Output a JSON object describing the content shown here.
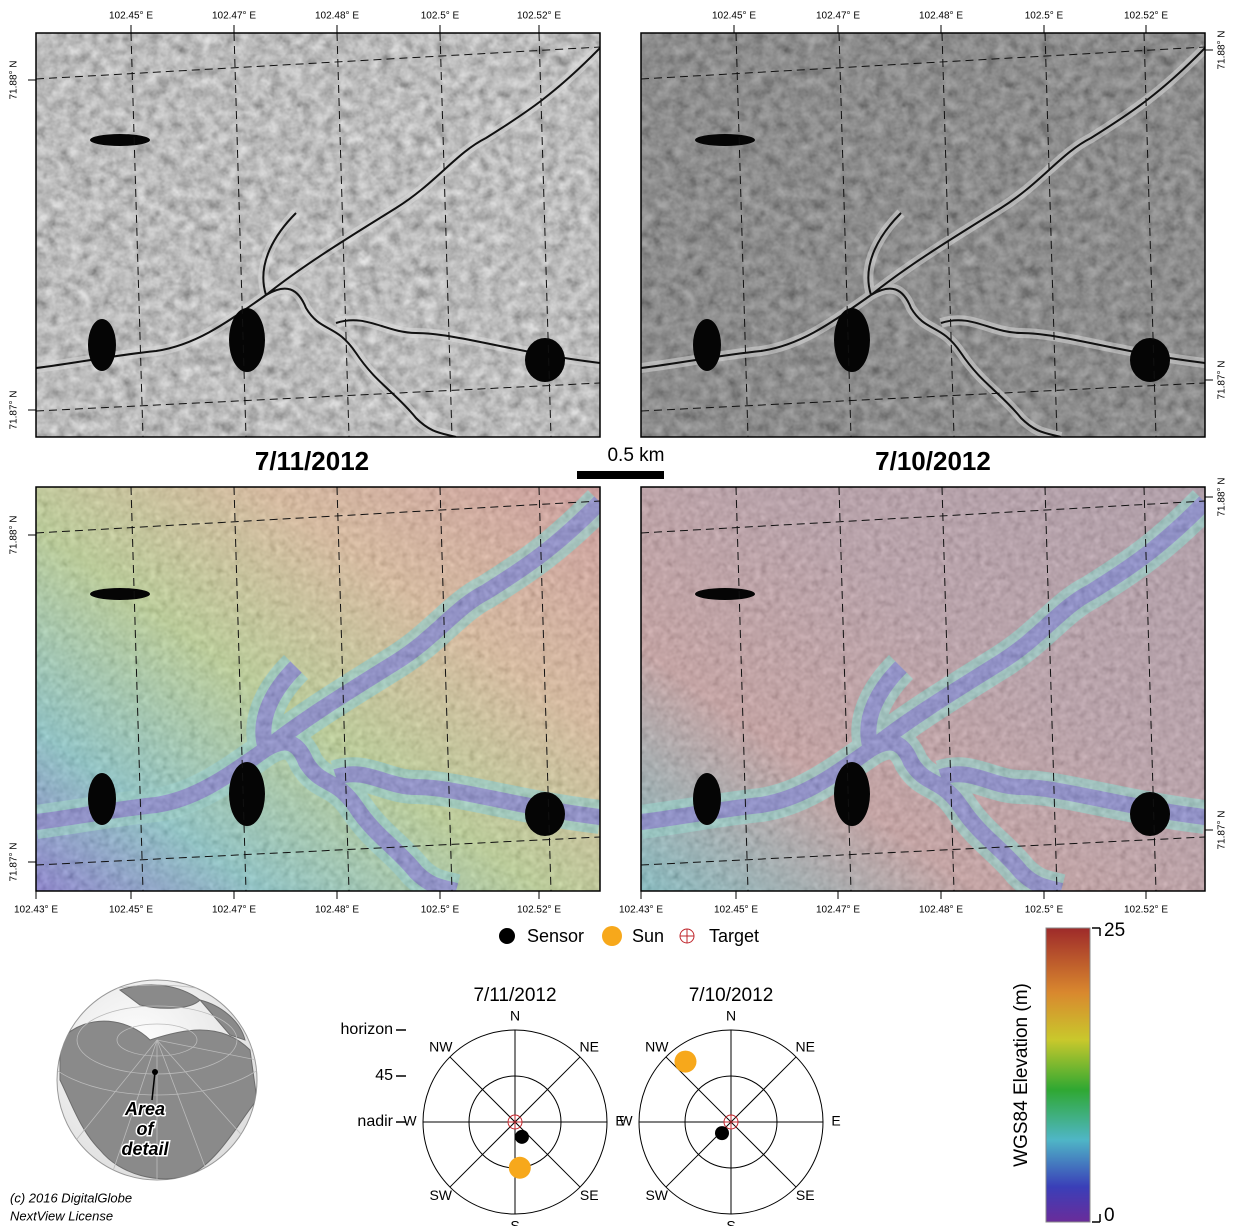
{
  "maps": {
    "titles": [
      "7/11/2012",
      "7/10/2012"
    ],
    "top_lon_labels": [
      "102.45° E",
      "102.47° E",
      "102.48° E",
      "102.5° E",
      "102.52° E"
    ],
    "bottom_lon_labels": [
      "102.43° E",
      "102.45° E",
      "102.47° E",
      "102.48° E",
      "102.5° E",
      "102.52° E"
    ],
    "lat_labels": [
      "71.88° N",
      "71.87° N"
    ],
    "scale_bar": "0.5 km"
  },
  "legend": {
    "sensor": "Sensor",
    "sun": "Sun",
    "target": "Target"
  },
  "polar_axis": {
    "rlim": [
      0,
      90
    ],
    "rticks": [
      {
        "value": 90,
        "label": "horizon"
      },
      45,
      {
        "value": 0,
        "label": "nadir"
      }
    ],
    "directions": [
      "N",
      "NE",
      "E",
      "SE",
      "S",
      "SW",
      "W",
      "NW"
    ]
  },
  "polar": [
    {
      "title": "7/11/2012",
      "sensor": {
        "azimuth": 155,
        "off_nadir": 16
      },
      "sun": {
        "azimuth": 174,
        "off_nadir": 45
      }
    },
    {
      "title": "7/10/2012",
      "sensor": {
        "azimuth": 219,
        "off_nadir": 14
      },
      "sun": {
        "azimuth": 323,
        "off_nadir": 74
      }
    }
  ],
  "colorbar": {
    "label": "WGS84 Elevation (m)",
    "clim": [
      0,
      25
    ],
    "ticks": [
      0,
      25
    ]
  },
  "globe": {
    "label": [
      "Area",
      "of",
      "detail"
    ]
  },
  "credit": [
    "(c) 2016 DigitalGlobe",
    "NextView License"
  ]
}
